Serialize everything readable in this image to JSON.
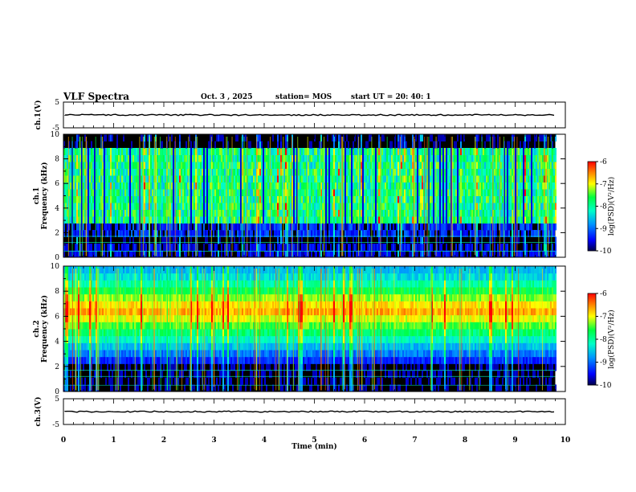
{
  "header": {
    "title": "VLF Spectra",
    "date": "Oct. 3 , 2025",
    "station": "station= MOS",
    "start": "start  UT  =   20: 40: 1"
  },
  "chart_data": {
    "type": "heatmap",
    "time_axis": {
      "label": "Time  (min)",
      "range": [
        0,
        10
      ],
      "ticks": [
        "0",
        "1",
        "2",
        "3",
        "4",
        "5",
        "6",
        "7",
        "8",
        "9",
        "10"
      ]
    },
    "panels": [
      {
        "id": "ch1_voltage",
        "type": "line",
        "ylabel": "ch.1(V)",
        "ylim": [
          -5,
          5
        ],
        "yticks": [
          "5",
          "-5"
        ],
        "level": 0
      },
      {
        "id": "ch1_spectrogram",
        "type": "heatmap",
        "ylabel": "ch.1\nFrequency  (kHz)",
        "ylabel_lines": [
          "ch.1",
          "Frequency  (kHz)"
        ],
        "ylim": [
          0,
          10
        ],
        "yticks": [
          "0",
          "2",
          "4",
          "6",
          "8",
          "10"
        ],
        "band_khz": [
          3,
          9
        ],
        "data_end_min": 9.8,
        "colorbar": {
          "label": "log(PSD)(V²/Hz)",
          "range": [
            -10,
            -6
          ],
          "ticks": [
            "-6",
            "-7",
            "-8",
            "-9",
            "-10"
          ]
        }
      },
      {
        "id": "ch2_spectrogram",
        "type": "heatmap",
        "ylabel": "ch.2\nFrequency  (kHz)",
        "ylabel_lines": [
          "ch.2",
          "Frequency  (kHz)"
        ],
        "ylim": [
          0,
          10
        ],
        "yticks": [
          "0",
          "2",
          "4",
          "6",
          "8",
          "10"
        ],
        "band_khz": [
          2.5,
          9.5
        ],
        "peak_khz": 6.5,
        "data_end_min": 9.8,
        "colorbar": {
          "label": "log(PSD)(V²/Hz)",
          "range": [
            -10,
            -6
          ],
          "ticks": [
            "-6",
            "-7",
            "-8",
            "-9",
            "-10"
          ]
        }
      },
      {
        "id": "ch3_voltage",
        "type": "line",
        "ylabel": "ch.3(V)",
        "ylim": [
          -5,
          5
        ],
        "yticks": [
          "5",
          "-5"
        ],
        "level": 0
      }
    ],
    "colors": {
      "background": "#000000",
      "low": "#0000ff",
      "mid": "#00ff80",
      "high": "#ff0000"
    }
  }
}
